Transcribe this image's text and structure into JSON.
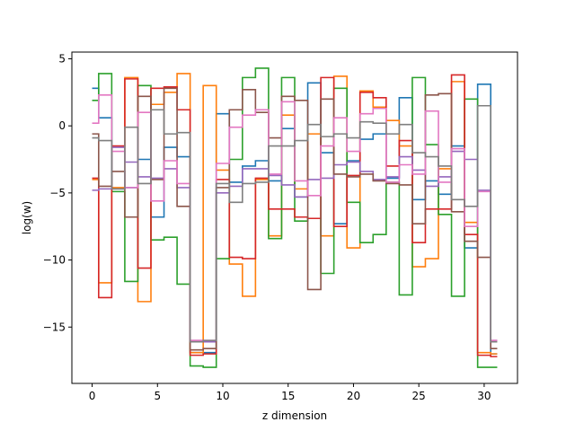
{
  "chart_data": {
    "type": "line",
    "step": "mid",
    "title": "",
    "xlabel": "z dimension",
    "ylabel": "log(w)",
    "xlim": [
      -1.55,
      32.55
    ],
    "ylim": [
      -19.2,
      5.5
    ],
    "xticks": [
      0,
      5,
      10,
      15,
      20,
      25,
      30
    ],
    "yticks": [
      5,
      0,
      -5,
      -10,
      -15
    ],
    "ytick_labels": [
      "5",
      "0",
      "−5",
      "−10",
      "−15"
    ],
    "x": [
      0,
      1,
      2,
      3,
      4,
      5,
      6,
      7,
      8,
      9,
      10,
      11,
      12,
      13,
      14,
      15,
      16,
      17,
      18,
      19,
      20,
      21,
      22,
      23,
      24,
      25,
      26,
      27,
      28,
      29,
      30,
      31
    ],
    "series": [
      {
        "color": "#1f77b4",
        "values": [
          2.8,
          0.6,
          -4.7,
          -4.6,
          -2.5,
          -6.8,
          -1.6,
          -2.3,
          -16.9,
          -16.9,
          0.9,
          -4.2,
          -3.0,
          -2.6,
          -4.1,
          -0.2,
          -5.3,
          3.2,
          -2.0,
          -7.3,
          -2.6,
          -1.0,
          -0.6,
          -3.9,
          2.1,
          -5.5,
          -4.1,
          -5.1,
          -1.5,
          -9.1,
          3.1,
          -17.0
        ]
      },
      {
        "color": "#ff7f0e",
        "values": [
          -4.0,
          -11.7,
          -4.6,
          3.6,
          -13.1,
          1.6,
          2.5,
          3.9,
          -16.9,
          3.0,
          -3.3,
          -10.3,
          -12.7,
          -4.0,
          -8.2,
          0.8,
          -4.7,
          -0.6,
          -8.2,
          3.7,
          -9.1,
          2.6,
          1.4,
          0.4,
          -1.5,
          -10.5,
          -9.9,
          -3.2,
          3.3,
          -7.2,
          -16.9,
          -17.0
        ]
      },
      {
        "color": "#2ca02c",
        "values": [
          1.9,
          3.9,
          -4.9,
          -11.6,
          3.0,
          -8.5,
          -8.3,
          -11.8,
          -17.9,
          -18.0,
          -9.9,
          -2.5,
          3.6,
          4.3,
          -8.4,
          3.6,
          -7.1,
          -6.9,
          -11.0,
          2.8,
          -5.7,
          -8.7,
          -8.1,
          -4.2,
          -12.6,
          3.6,
          -1.4,
          -6.6,
          -12.7,
          2.0,
          -18.0,
          -18.0
        ]
      },
      {
        "color": "#d62728",
        "values": [
          -3.9,
          -12.8,
          -1.5,
          3.5,
          -10.6,
          2.8,
          2.9,
          1.2,
          -17.1,
          -17.0,
          -4.0,
          -9.8,
          -9.9,
          -3.9,
          -6.2,
          -6.2,
          -6.8,
          -6.9,
          3.6,
          -7.5,
          -3.7,
          2.5,
          2.1,
          -3.0,
          -1.1,
          -8.7,
          -6.2,
          -6.2,
          3.8,
          -8.1,
          -17.1,
          -17.2
        ]
      },
      {
        "color": "#9467bd",
        "values": [
          -4.8,
          -4.7,
          -1.6,
          -2.7,
          -3.8,
          -3.9,
          -3.2,
          -4.6,
          -16.0,
          -16.1,
          -5.0,
          -4.5,
          -3.2,
          -3.2,
          -3.7,
          -4.4,
          -5.3,
          -4.0,
          -3.9,
          -2.9,
          -2.7,
          -3.4,
          -4.0,
          -3.8,
          -2.3,
          -3.3,
          -4.5,
          -3.8,
          -1.9,
          -2.5,
          -4.8,
          -16.0
        ]
      },
      {
        "color": "#8c564b",
        "values": [
          -0.6,
          -4.5,
          -3.4,
          -6.8,
          2.2,
          -4.0,
          2.8,
          -6.0,
          -16.7,
          -16.6,
          -4.6,
          1.2,
          2.7,
          1.0,
          -0.9,
          2.2,
          1.9,
          -12.2,
          2.0,
          -3.6,
          -3.8,
          -3.6,
          -4.1,
          -4.3,
          -4.4,
          -7.3,
          2.3,
          2.4,
          -6.4,
          -8.6,
          -9.8,
          -16.6
        ]
      },
      {
        "color": "#e377c2",
        "values": [
          0.2,
          2.3,
          -1.9,
          -4.6,
          1.0,
          -5.6,
          -2.6,
          -4.3,
          -16.0,
          -16.0,
          -2.8,
          -0.1,
          0.8,
          1.2,
          -3.6,
          1.8,
          -4.1,
          -5.2,
          -1.5,
          0.6,
          -1.9,
          0.9,
          1.3,
          -4.2,
          -2.9,
          -3.6,
          1.1,
          -4.2,
          -1.7,
          -7.5,
          -4.9,
          -16.0
        ]
      },
      {
        "color": "#7f7f7f",
        "values": [
          -0.9,
          -1.1,
          -4.7,
          -0.1,
          -4.3,
          1.2,
          -0.6,
          -0.5,
          -16.1,
          -16.0,
          -4.3,
          -5.7,
          -4.3,
          -4.2,
          -1.5,
          -1.5,
          -1.1,
          0.1,
          -0.8,
          -0.6,
          -0.9,
          0.3,
          0.2,
          -0.6,
          0.1,
          -2.0,
          -2.3,
          -3.0,
          -5.5,
          -6.0,
          1.5,
          -16.1
        ]
      }
    ],
    "grid": false,
    "legend": false
  }
}
